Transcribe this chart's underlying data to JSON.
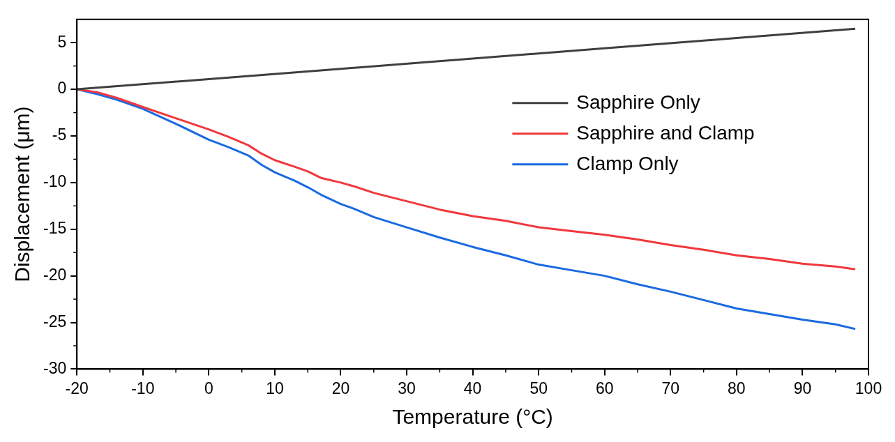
{
  "chart_data": {
    "type": "line",
    "xlabel": "Temperature (°C)",
    "ylabel": "Displacement (μm)",
    "xlim": [
      -20,
      100
    ],
    "xticks": [
      -20,
      -10,
      0,
      10,
      20,
      30,
      40,
      50,
      60,
      70,
      80,
      90,
      100
    ],
    "ylim": [
      -30,
      7.5
    ],
    "yticks": [
      -30,
      -25,
      -20,
      -15,
      -10,
      -5,
      0,
      5
    ],
    "grid": false,
    "legend": "right",
    "marker": "none",
    "line_style": "solid",
    "series": [
      {
        "name": "Sapphire Only",
        "color": "#3f3f3f",
        "x": [
          -20,
          0,
          20,
          40,
          60,
          80,
          98
        ],
        "values": [
          0,
          1.1,
          2.2,
          3.3,
          4.4,
          5.5,
          6.5
        ]
      },
      {
        "name": "Sapphire and Clamp",
        "color": "#f0383d",
        "x": [
          -20,
          -17,
          -14,
          -10,
          -5,
          0,
          3,
          6,
          8,
          10,
          13,
          15,
          17,
          20,
          22,
          25,
          30,
          35,
          40,
          45,
          50,
          55,
          60,
          65,
          70,
          75,
          80,
          85,
          90,
          95,
          98
        ],
        "values": [
          0,
          -0.3,
          -0.9,
          -1.9,
          -3.1,
          -4.3,
          -5.1,
          -6,
          -6.9,
          -7.6,
          -8.3,
          -8.8,
          -9.5,
          -10,
          -10.4,
          -11.1,
          -12,
          -12.9,
          -13.6,
          -14.1,
          -14.8,
          -15.2,
          -15.6,
          -16.1,
          -16.7,
          -17.2,
          -17.8,
          -18.2,
          -18.7,
          -19,
          -19.3
        ]
      },
      {
        "name": "Clamp Only",
        "color": "#1a6ae0",
        "x": [
          -20,
          -17,
          -14,
          -10,
          -5,
          0,
          3,
          6,
          8,
          10,
          13,
          15,
          17,
          20,
          22,
          25,
          30,
          35,
          40,
          45,
          50,
          55,
          60,
          65,
          70,
          75,
          80,
          85,
          90,
          95,
          98
        ],
        "values": [
          0,
          -0.5,
          -1.1,
          -2.1,
          -3.7,
          -5.4,
          -6.2,
          -7.1,
          -8.1,
          -8.9,
          -9.8,
          -10.5,
          -11.3,
          -12.3,
          -12.8,
          -13.7,
          -14.8,
          -15.9,
          -16.9,
          -17.8,
          -18.8,
          -19.4,
          -20,
          -20.9,
          -21.7,
          -22.6,
          -23.5,
          -24.1,
          -24.7,
          -25.2,
          -25.7
        ]
      }
    ]
  }
}
